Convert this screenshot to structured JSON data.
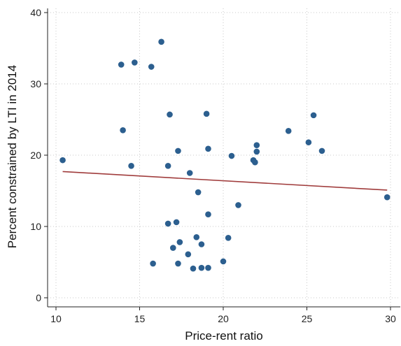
{
  "chart_data": {
    "type": "scatter",
    "title": "",
    "xlabel": "Price-rent ratio",
    "ylabel": "Percent constrained by LTI in 2014",
    "xlim": [
      10,
      30
    ],
    "ylim": [
      0,
      40
    ],
    "x_ticks": [
      "10",
      "15",
      "20",
      "25",
      "30"
    ],
    "y_ticks": [
      "0",
      "10",
      "20",
      "30",
      "40"
    ],
    "grid": true,
    "marker_color": "#2c5f8f",
    "fit_line_color": "#a03c3c",
    "points": [
      {
        "x": 10.4,
        "y": 19.3
      },
      {
        "x": 13.9,
        "y": 32.7
      },
      {
        "x": 14.0,
        "y": 23.5
      },
      {
        "x": 14.5,
        "y": 18.5
      },
      {
        "x": 14.7,
        "y": 33.0
      },
      {
        "x": 15.7,
        "y": 32.4
      },
      {
        "x": 15.8,
        "y": 4.8
      },
      {
        "x": 16.3,
        "y": 35.9
      },
      {
        "x": 16.7,
        "y": 18.5
      },
      {
        "x": 16.7,
        "y": 10.4
      },
      {
        "x": 16.8,
        "y": 25.7
      },
      {
        "x": 17.0,
        "y": 7.0
      },
      {
        "x": 17.2,
        "y": 10.6
      },
      {
        "x": 17.3,
        "y": 20.6
      },
      {
        "x": 17.3,
        "y": 4.8
      },
      {
        "x": 17.4,
        "y": 7.8
      },
      {
        "x": 17.9,
        "y": 6.1
      },
      {
        "x": 18.0,
        "y": 17.5
      },
      {
        "x": 18.2,
        "y": 4.1
      },
      {
        "x": 18.4,
        "y": 8.5
      },
      {
        "x": 18.5,
        "y": 14.8
      },
      {
        "x": 18.7,
        "y": 7.5
      },
      {
        "x": 18.7,
        "y": 4.2
      },
      {
        "x": 19.0,
        "y": 25.8
      },
      {
        "x": 19.1,
        "y": 20.9
      },
      {
        "x": 19.1,
        "y": 11.7
      },
      {
        "x": 19.1,
        "y": 4.2
      },
      {
        "x": 20.0,
        "y": 5.1
      },
      {
        "x": 20.3,
        "y": 8.4
      },
      {
        "x": 20.5,
        "y": 19.9
      },
      {
        "x": 20.9,
        "y": 13.0
      },
      {
        "x": 21.8,
        "y": 19.3
      },
      {
        "x": 21.9,
        "y": 19.0
      },
      {
        "x": 22.0,
        "y": 21.4
      },
      {
        "x": 22.0,
        "y": 20.5
      },
      {
        "x": 23.9,
        "y": 23.4
      },
      {
        "x": 25.1,
        "y": 21.8
      },
      {
        "x": 25.4,
        "y": 25.6
      },
      {
        "x": 25.9,
        "y": 20.6
      },
      {
        "x": 29.8,
        "y": 14.1
      }
    ],
    "fit_line": {
      "x": [
        10.4,
        29.8
      ],
      "y": [
        17.7,
        15.1
      ]
    }
  }
}
